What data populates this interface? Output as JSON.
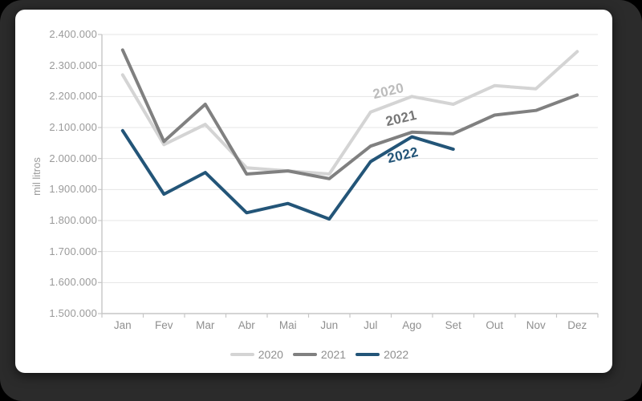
{
  "colors": {
    "outer_background": "#000000",
    "frame_background": "#2b2b2b",
    "card_background": "#ffffff",
    "gridline": "#e4e4e4",
    "axis_line": "#c6c6c6",
    "tick_text": "#9a9a9a",
    "month_text": "#8f8f8f",
    "legend_text": "#8f8f8f"
  },
  "chart_data": {
    "type": "line",
    "title": "",
    "ylabel": "mil litros",
    "xlabel": "",
    "grid": true,
    "legend_position": "bottom",
    "categories": [
      "Jan",
      "Fev",
      "Mar",
      "Abr",
      "Mai",
      "Jun",
      "Jul",
      "Ago",
      "Set",
      "Out",
      "Nov",
      "Dez"
    ],
    "y_axis": {
      "min": 1500000,
      "max": 2400000,
      "step": 100000,
      "tick_labels": [
        "2.400.000",
        "2.300.000",
        "2.200.000",
        "2.100.000",
        "2.000.000",
        "1.900.000",
        "1.800.000",
        "1.700.000",
        "1.600.000",
        "1.500.000"
      ]
    },
    "series": [
      {
        "name": "2020",
        "color": "#d4d4d4",
        "label_color": "#bcbcbc",
        "values": [
          2270000,
          2045000,
          2110000,
          1970000,
          1960000,
          1950000,
          2150000,
          2200000,
          2175000,
          2235000,
          2225000,
          2345000
        ]
      },
      {
        "name": "2021",
        "color": "#808080",
        "label_color": "#767676",
        "values": [
          2350000,
          2055000,
          2175000,
          1950000,
          1960000,
          1935000,
          2040000,
          2085000,
          2080000,
          2140000,
          2155000,
          2205000
        ]
      },
      {
        "name": "2022",
        "color": "#235578",
        "label_color": "#235578",
        "values": [
          2090000,
          1885000,
          1955000,
          1825000,
          1855000,
          1805000,
          1990000,
          2070000,
          2030000
        ]
      }
    ]
  }
}
